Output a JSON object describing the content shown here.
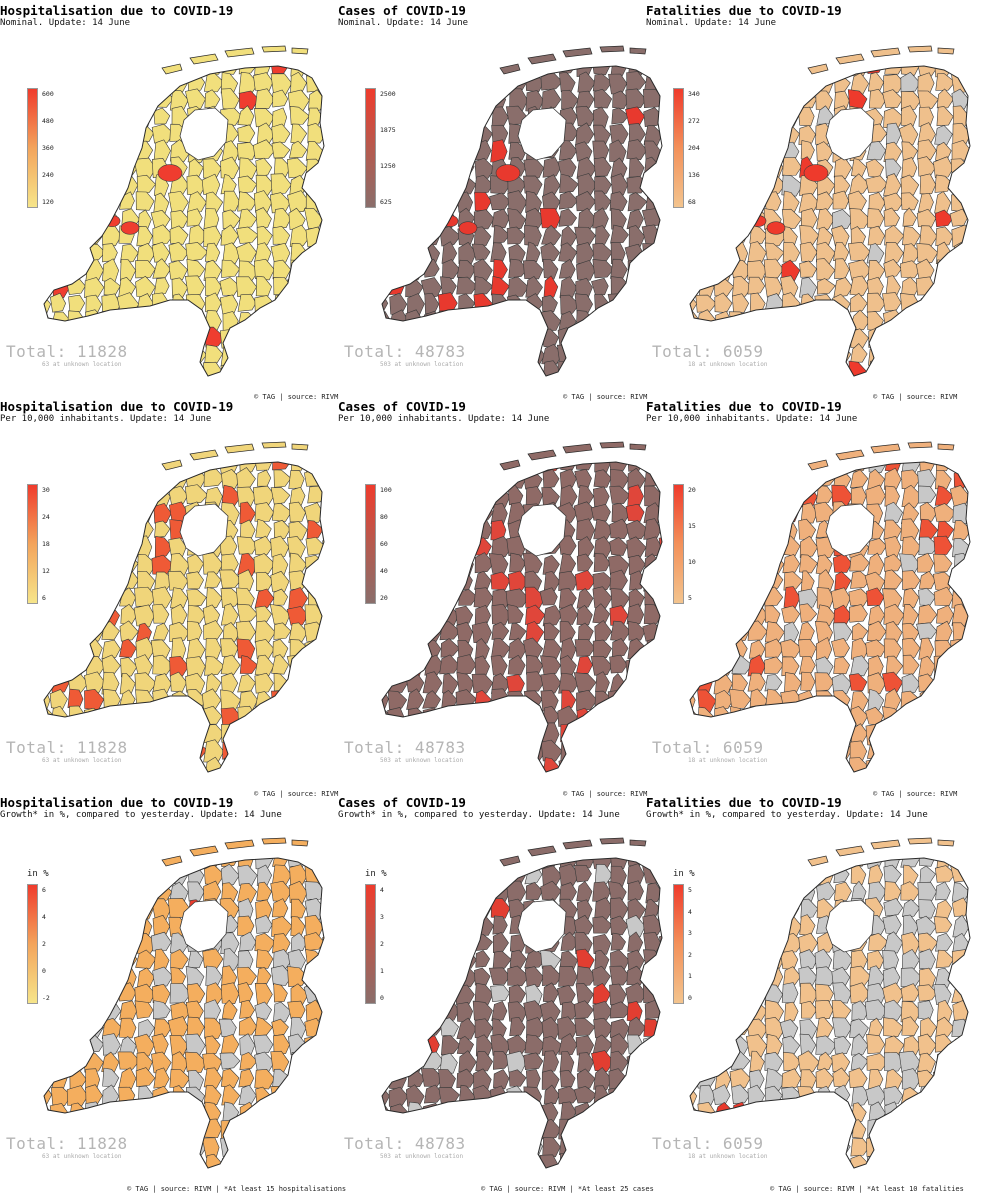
{
  "maps": [
    {
      "title": "Hospitalisation due to COVID-19",
      "subtitle": "Nominal. Update: 14 June",
      "legend_title": "",
      "ticks": [
        "600",
        "480",
        "360",
        "240",
        "120"
      ],
      "palette": "yellow",
      "total": "Total: 11828",
      "unknown": "63 at unknown location",
      "base_color": "#f1df7c",
      "hot_color": "#ef3d2f",
      "grey_fraction": 0.0,
      "hot_fraction": 0.03
    },
    {
      "title": "Cases of COVID-19",
      "subtitle": "Nominal. Update: 14 June",
      "legend_title": "",
      "ticks": [
        "2500",
        "1875",
        "1250",
        "625"
      ],
      "palette": "brown",
      "total": "Total: 48783",
      "unknown": "503 at unknown location",
      "base_color": "#8a6e6b",
      "hot_color": "#e8392e",
      "grey_fraction": 0.0,
      "hot_fraction": 0.03
    },
    {
      "title": "Fatalities due to COVID-19",
      "subtitle": "Nominal. Update: 14 June",
      "legend_title": "",
      "ticks": [
        "340",
        "272",
        "204",
        "136",
        "68"
      ],
      "palette": "orange",
      "total": "Total: 6059",
      "unknown": "18 at unknown location",
      "base_color": "#efc08c",
      "hot_color": "#ee3a2c",
      "grey_fraction": 0.08,
      "hot_fraction": 0.04
    },
    {
      "title": "Hospitalisation due to COVID-19",
      "subtitle": "Per 10,000 inhabitants. Update: 14 June",
      "legend_title": "",
      "ticks": [
        "30",
        "24",
        "18",
        "12",
        "6"
      ],
      "palette": "yellow",
      "total": "Total: 11828",
      "unknown": "63 at unknown location",
      "base_color": "#f0d57a",
      "hot_color": "#ef5a36",
      "grey_fraction": 0.0,
      "hot_fraction": 0.12
    },
    {
      "title": "Cases of COVID-19",
      "subtitle": "Per 10,000 inhabitants. Update: 14 June",
      "legend_title": "",
      "ticks": [
        "100",
        "80",
        "60",
        "40",
        "20"
      ],
      "palette": "brown",
      "total": "Total: 48783",
      "unknown": "503 at unknown location",
      "base_color": "#8f6a66",
      "hot_color": "#e0463a",
      "grey_fraction": 0.0,
      "hot_fraction": 0.15
    },
    {
      "title": "Fatalities due to COVID-19",
      "subtitle": "Per 10,000 inhabitants. Update: 14 June",
      "legend_title": "",
      "ticks": [
        "20",
        "15",
        "10",
        "5"
      ],
      "palette": "orange",
      "total": "Total: 6059",
      "unknown": "18 at unknown location",
      "base_color": "#efb07c",
      "hot_color": "#ee5236",
      "grey_fraction": 0.12,
      "hot_fraction": 0.1
    },
    {
      "title": "Hospitalisation due to COVID-19",
      "subtitle": "Growth* in %, compared to yesterday. Update: 14 June",
      "legend_title": "in %",
      "ticks": [
        "6",
        "4",
        "2",
        "0",
        "-2"
      ],
      "palette": "yellow",
      "total": "Total: 11828",
      "unknown": "63 at unknown location",
      "base_color": "#f4ae5e",
      "hot_color": "#ec3d2e",
      "grey_fraction": 0.35,
      "hot_fraction": 0.01
    },
    {
      "title": "Cases of COVID-19",
      "subtitle": "Growth* in %, compared to yesterday. Update: 14 June",
      "legend_title": "in %",
      "ticks": [
        "4",
        "3",
        "2",
        "1",
        "0"
      ],
      "palette": "brown",
      "total": "Total: 48783",
      "unknown": "503 at unknown location",
      "base_color": "#8b6c69",
      "hot_color": "#e23e31",
      "grey_fraction": 0.12,
      "hot_fraction": 0.05
    },
    {
      "title": "Fatalities due to COVID-19",
      "subtitle": "Growth* in %, compared to yesterday. Update: 14 June",
      "legend_title": "in %",
      "ticks": [
        "5",
        "4",
        "3",
        "2",
        "1",
        "0"
      ],
      "palette": "orange",
      "total": "Total: 6059",
      "unknown": "18 at unknown location",
      "base_color": "#f1c18c",
      "hot_color": "#e83a2d",
      "grey_fraction": 0.5,
      "hot_fraction": 0.01
    }
  ],
  "sources": [
    "© TAG | source: RIVM",
    "© TAG | source: RIVM",
    "© TAG | source: RIVM",
    "© TAG | source: RIVM",
    "© TAG | source: RIVM",
    "© TAG | source: RIVM",
    "© TAG | source: RIVM | *At least 15 hospitalisations",
    "© TAG | source: RIVM | *At least 25 cases",
    "© TAG | source: RIVM | *At least 10 fatalities"
  ],
  "palettes": {
    "yellow": [
      "#ef3b2c",
      "#f3a45c",
      "#f6e58a"
    ],
    "brown": [
      "#ef3b2c",
      "#b65a4e",
      "#8a6e6b"
    ],
    "orange": [
      "#ef3b2c",
      "#f3915a",
      "#f3c48e"
    ]
  },
  "no_data_color": "#c8c8c8"
}
